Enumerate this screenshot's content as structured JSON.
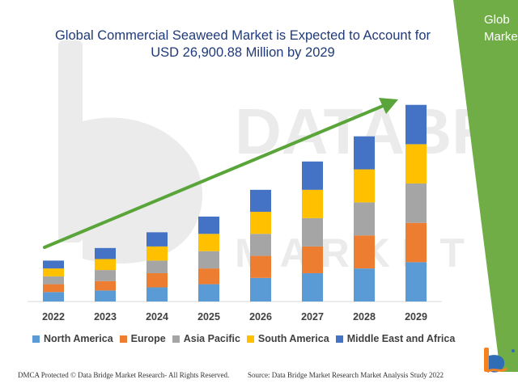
{
  "title_line1": "Global Commercial Seaweed Market is Expected to Account for",
  "title_line2": "USD 26,900.88 Million by 2029",
  "side_panel": {
    "line1": "Glob",
    "line2": "Marke"
  },
  "footer": {
    "left": "DMCA Protected © Data Bridge Market Research- All Rights Reserved.",
    "right": "Source: Data Bridge Market Research Market Analysis Study 2022"
  },
  "colors": {
    "panel_green": "#70ad47",
    "trend_arrow": "#5aa53a",
    "watermark": "#e8e8e8"
  },
  "chart_data": {
    "type": "bar",
    "stacked": true,
    "categories": [
      "2022",
      "2023",
      "2024",
      "2025",
      "2026",
      "2027",
      "2028",
      "2029"
    ],
    "series": [
      {
        "name": "North America",
        "color": "#5b9bd5",
        "values": [
          3.0,
          3.5,
          4.5,
          5.5,
          7.5,
          9.0,
          10.5,
          12.5
        ]
      },
      {
        "name": "Europe",
        "color": "#ed7d31",
        "values": [
          2.5,
          3.0,
          4.5,
          5.0,
          7.0,
          8.5,
          10.5,
          12.5
        ]
      },
      {
        "name": "Asia Pacific",
        "color": "#a5a5a5",
        "values": [
          2.5,
          3.5,
          4.0,
          5.5,
          7.0,
          9.0,
          10.5,
          12.5
        ]
      },
      {
        "name": "South America",
        "color": "#ffc000",
        "values": [
          2.5,
          3.5,
          4.5,
          5.5,
          7.0,
          9.0,
          10.5,
          12.5
        ]
      },
      {
        "name": "Middle East and Africa",
        "color": "#4472c4",
        "values": [
          2.5,
          3.5,
          4.5,
          5.5,
          7.0,
          9.0,
          10.5,
          12.5
        ]
      }
    ],
    "ylim": [
      0,
      65
    ],
    "xlabel": "",
    "ylabel": "",
    "grid": false,
    "legend_position": "bottom",
    "annotations": [
      "upward trend arrow"
    ]
  }
}
